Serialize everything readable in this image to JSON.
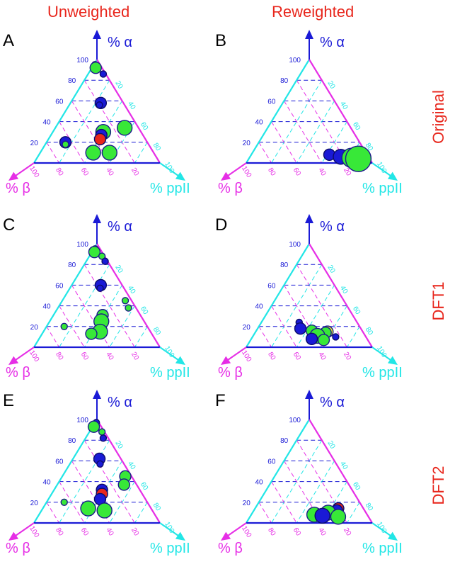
{
  "header": {
    "col_left": "Unweighted",
    "col_right": "Reweighted",
    "row_labels": [
      "Original",
      "DFT1",
      "DFT2"
    ]
  },
  "axis_labels": {
    "alpha": "% α",
    "beta": "% β",
    "ppii": "% ppII"
  },
  "colors": {
    "alpha": "#1a1ad6",
    "beta": "#e62ee6",
    "ppii": "#22e6e6",
    "title": "#e8261c",
    "green": "#38e838",
    "blue": "#1a1ad6",
    "red": "#e8261c",
    "yellow": "#ecec30"
  },
  "chart_data": [
    {
      "panel": "A",
      "type": "scatter",
      "coordinates": "ternary",
      "axes": [
        "% α",
        "% β",
        "% ppII"
      ],
      "ticks": [
        20,
        40,
        60,
        80,
        100
      ],
      "points": [
        {
          "alpha": 95,
          "beta": 4,
          "ppii": 1,
          "size": 1,
          "color": "blue"
        },
        {
          "alpha": 92,
          "beta": 5,
          "ppii": 3,
          "size": 2,
          "color": "green"
        },
        {
          "alpha": 86,
          "beta": 2,
          "ppii": 12,
          "size": 1,
          "color": "blue"
        },
        {
          "alpha": 58,
          "beta": 18,
          "ppii": 24,
          "size": 2,
          "color": "blue"
        },
        {
          "alpha": 56,
          "beta": 20,
          "ppii": 24,
          "size": 1,
          "color": "blue"
        },
        {
          "alpha": 34,
          "beta": 11,
          "ppii": 55,
          "size": 3,
          "color": "green"
        },
        {
          "alpha": 30,
          "beta": 30,
          "ppii": 40,
          "size": 3,
          "color": "green"
        },
        {
          "alpha": 27,
          "beta": 33,
          "ppii": 40,
          "size": 2,
          "color": "blue"
        },
        {
          "alpha": 23,
          "beta": 36,
          "ppii": 41,
          "size": 2,
          "color": "red"
        },
        {
          "alpha": 20,
          "beta": 65,
          "ppii": 15,
          "size": 2,
          "color": "blue"
        },
        {
          "alpha": 18,
          "beta": 66,
          "ppii": 16,
          "size": 1,
          "color": "green"
        },
        {
          "alpha": 10,
          "beta": 48,
          "ppii": 42,
          "size": 3,
          "color": "green"
        },
        {
          "alpha": 10,
          "beta": 35,
          "ppii": 55,
          "size": 3,
          "color": "green"
        }
      ]
    },
    {
      "panel": "B",
      "type": "scatter",
      "coordinates": "ternary",
      "axes": [
        "% α",
        "% β",
        "% ppII"
      ],
      "ticks": [
        20,
        40,
        60,
        80,
        100
      ],
      "points": [
        {
          "alpha": 8,
          "beta": 30,
          "ppii": 62,
          "size": 2,
          "color": "blue"
        },
        {
          "alpha": 6,
          "beta": 22,
          "ppii": 72,
          "size": 3,
          "color": "blue"
        },
        {
          "alpha": 5,
          "beta": 14,
          "ppii": 81,
          "size": 4,
          "color": "green"
        },
        {
          "alpha": 4,
          "beta": 9,
          "ppii": 87,
          "size": 5,
          "color": "green"
        }
      ]
    },
    {
      "panel": "C",
      "type": "scatter",
      "coordinates": "ternary",
      "axes": [
        "% α",
        "% β",
        "% ppII"
      ],
      "ticks": [
        20,
        40,
        60,
        80,
        100
      ],
      "points": [
        {
          "alpha": 95,
          "beta": 4,
          "ppii": 1,
          "size": 1,
          "color": "blue"
        },
        {
          "alpha": 92,
          "beta": 6,
          "ppii": 2,
          "size": 2,
          "color": "green"
        },
        {
          "alpha": 88,
          "beta": 2,
          "ppii": 10,
          "size": 1,
          "color": "green"
        },
        {
          "alpha": 83,
          "beta": 2,
          "ppii": 15,
          "size": 1,
          "color": "blue"
        },
        {
          "alpha": 60,
          "beta": 17,
          "ppii": 23,
          "size": 2,
          "color": "blue"
        },
        {
          "alpha": 57,
          "beta": 19,
          "ppii": 24,
          "size": 1,
          "color": "blue"
        },
        {
          "alpha": 45,
          "beta": 5,
          "ppii": 50,
          "size": 1,
          "color": "green"
        },
        {
          "alpha": 38,
          "beta": 6,
          "ppii": 56,
          "size": 1,
          "color": "green"
        },
        {
          "alpha": 31,
          "beta": 30,
          "ppii": 39,
          "size": 2,
          "color": "green"
        },
        {
          "alpha": 25,
          "beta": 34,
          "ppii": 41,
          "size": 3,
          "color": "green"
        },
        {
          "alpha": 20,
          "beta": 66,
          "ppii": 14,
          "size": 1,
          "color": "green"
        },
        {
          "alpha": 15,
          "beta": 40,
          "ppii": 45,
          "size": 3,
          "color": "green"
        },
        {
          "alpha": 13,
          "beta": 48,
          "ppii": 39,
          "size": 2,
          "color": "green"
        }
      ]
    },
    {
      "panel": "D",
      "type": "scatter",
      "coordinates": "ternary",
      "axes": [
        "% α",
        "% β",
        "% ppII"
      ],
      "ticks": [
        20,
        40,
        60,
        80,
        100
      ],
      "points": [
        {
          "alpha": 24,
          "beta": 46,
          "ppii": 30,
          "size": 1,
          "color": "blue"
        },
        {
          "alpha": 18,
          "beta": 48,
          "ppii": 34,
          "size": 2,
          "color": "blue"
        },
        {
          "alpha": 16,
          "beta": 40,
          "ppii": 44,
          "size": 2,
          "color": "green"
        },
        {
          "alpha": 15,
          "beta": 28,
          "ppii": 57,
          "size": 2,
          "color": "yellow"
        },
        {
          "alpha": 14,
          "beta": 30,
          "ppii": 56,
          "size": 2,
          "color": "green"
        },
        {
          "alpha": 11,
          "beta": 38,
          "ppii": 51,
          "size": 3,
          "color": "green"
        },
        {
          "alpha": 10,
          "beta": 24,
          "ppii": 66,
          "size": 1,
          "color": "blue"
        },
        {
          "alpha": 8,
          "beta": 44,
          "ppii": 48,
          "size": 2,
          "color": "blue"
        },
        {
          "alpha": 7,
          "beta": 35,
          "ppii": 58,
          "size": 2,
          "color": "green"
        }
      ]
    },
    {
      "panel": "E",
      "type": "scatter",
      "coordinates": "ternary",
      "axes": [
        "% α",
        "% β",
        "% ppII"
      ],
      "ticks": [
        20,
        40,
        60,
        80,
        100
      ],
      "points": [
        {
          "alpha": 97,
          "beta": 2,
          "ppii": 1,
          "size": 1,
          "color": "blue"
        },
        {
          "alpha": 93,
          "beta": 6,
          "ppii": 1,
          "size": 2,
          "color": "green"
        },
        {
          "alpha": 88,
          "beta": 2,
          "ppii": 10,
          "size": 1,
          "color": "green"
        },
        {
          "alpha": 82,
          "beta": 4,
          "ppii": 14,
          "size": 1,
          "color": "blue"
        },
        {
          "alpha": 62,
          "beta": 17,
          "ppii": 21,
          "size": 2,
          "color": "blue"
        },
        {
          "alpha": 57,
          "beta": 19,
          "ppii": 24,
          "size": 1,
          "color": "blue"
        },
        {
          "alpha": 45,
          "beta": 5,
          "ppii": 50,
          "size": 2,
          "color": "green"
        },
        {
          "alpha": 37,
          "beta": 10,
          "ppii": 53,
          "size": 2,
          "color": "green"
        },
        {
          "alpha": 32,
          "beta": 30,
          "ppii": 38,
          "size": 2,
          "color": "blue"
        },
        {
          "alpha": 28,
          "beta": 32,
          "ppii": 40,
          "size": 2,
          "color": "red"
        },
        {
          "alpha": 23,
          "beta": 36,
          "ppii": 41,
          "size": 2,
          "color": "blue"
        },
        {
          "alpha": 20,
          "beta": 66,
          "ppii": 14,
          "size": 1,
          "color": "green"
        },
        {
          "alpha": 14,
          "beta": 50,
          "ppii": 36,
          "size": 3,
          "color": "green"
        },
        {
          "alpha": 12,
          "beta": 38,
          "ppii": 50,
          "size": 3,
          "color": "green"
        }
      ]
    },
    {
      "panel": "F",
      "type": "scatter",
      "coordinates": "ternary",
      "axes": [
        "% α",
        "% β",
        "% ppII"
      ],
      "ticks": [
        20,
        40,
        60,
        80,
        100
      ],
      "points": [
        {
          "alpha": 14,
          "beta": 20,
          "ppii": 66,
          "size": 2,
          "color": "red"
        },
        {
          "alpha": 12,
          "beta": 22,
          "ppii": 66,
          "size": 2,
          "color": "blue"
        },
        {
          "alpha": 10,
          "beta": 30,
          "ppii": 60,
          "size": 3,
          "color": "green"
        },
        {
          "alpha": 8,
          "beta": 42,
          "ppii": 50,
          "size": 3,
          "color": "green"
        },
        {
          "alpha": 7,
          "beta": 36,
          "ppii": 57,
          "size": 3,
          "color": "blue"
        },
        {
          "alpha": 6,
          "beta": 24,
          "ppii": 70,
          "size": 3,
          "color": "green"
        }
      ]
    }
  ]
}
